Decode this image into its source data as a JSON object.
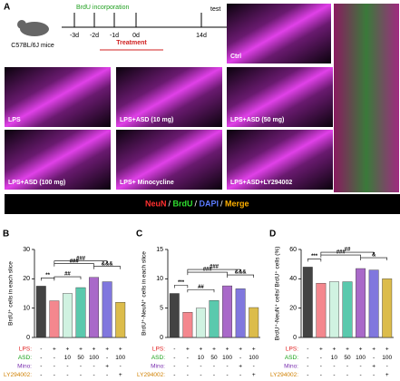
{
  "panel_a": {
    "label": "A",
    "mouse": "C57BL/6J mice",
    "brdu": "BrdU incorporation",
    "days": [
      "-3d",
      "-2d",
      "-1d",
      "0d",
      "14d"
    ],
    "test": "test",
    "treatment": "Treatment",
    "images": [
      "Ctrl",
      "LPS",
      "LPS+ASD (10 mg)",
      "LPS+ASD (50 mg)",
      "LPS+ASD (100 mg)",
      "LPS+ Minocycline",
      "LPS+ASD+LY294002"
    ],
    "stains": [
      {
        "name": "NeuN",
        "color": "#ff3030"
      },
      {
        "name": "BrdU",
        "color": "#30e030"
      },
      {
        "name": "DAPI",
        "color": "#5b7bff"
      },
      {
        "name": "Merge",
        "color": "#ffb000"
      }
    ]
  },
  "chart_data": [
    {
      "type": "bar",
      "label": "B",
      "ylabel": "BrdU⁺ cells in each slice",
      "values": [
        17.5,
        12.5,
        15,
        17,
        20.5,
        19,
        12
      ],
      "colors": [
        "#222222",
        "#f2727a",
        "#c8f0dc",
        "#3dbf9f",
        "#9a4fc0",
        "#6a5fd8",
        "#d6b02c"
      ],
      "ylim": [
        0,
        30
      ],
      "yticks": [
        0,
        10,
        20,
        30
      ],
      "annotations": [
        {
          "text": "**",
          "from": 0,
          "to": 1
        },
        {
          "text": "##",
          "from": 1,
          "to": 3
        },
        {
          "text": "###",
          "from": 1,
          "to": 4
        },
        {
          "text": "###",
          "from": 1,
          "to": 5
        },
        {
          "text": "&&&",
          "from": 4,
          "to": 6
        }
      ]
    },
    {
      "type": "bar",
      "label": "C",
      "ylabel": "BrdU⁺-NeuN⁺ cells in each slice",
      "values": [
        7.5,
        4.3,
        5.0,
        6.3,
        8.8,
        8.3,
        5.1
      ],
      "colors": [
        "#222222",
        "#f2727a",
        "#c8f0dc",
        "#3dbf9f",
        "#9a4fc0",
        "#6a5fd8",
        "#d6b02c"
      ],
      "ylim": [
        0,
        15
      ],
      "yticks": [
        0,
        5,
        10,
        15
      ],
      "annotations": [
        {
          "text": "***",
          "from": 0,
          "to": 1
        },
        {
          "text": "##",
          "from": 1,
          "to": 3
        },
        {
          "text": "###",
          "from": 1,
          "to": 4
        },
        {
          "text": "###",
          "from": 1,
          "to": 5
        },
        {
          "text": "&&&",
          "from": 4,
          "to": 6
        }
      ]
    },
    {
      "type": "bar",
      "label": "D",
      "ylabel": "BrdU⁺-NeuN⁺ cells/ BrdU⁺ cells (%)",
      "values": [
        48,
        37,
        38,
        38,
        47,
        46,
        40
      ],
      "colors": [
        "#222222",
        "#f2727a",
        "#c8f0dc",
        "#3dbf9f",
        "#9a4fc0",
        "#6a5fd8",
        "#d6b02c"
      ],
      "ylim": [
        0,
        60
      ],
      "yticks": [
        0,
        20,
        40,
        60
      ],
      "annotations": [
        {
          "text": "***",
          "from": 0,
          "to": 1
        },
        {
          "text": "###",
          "from": 1,
          "to": 4
        },
        {
          "text": "##",
          "from": 1,
          "to": 5
        },
        {
          "text": "&",
          "from": 4,
          "to": 6
        }
      ]
    }
  ],
  "conditions": [
    {
      "name": "LPS:",
      "color": "#e02020",
      "values": [
        "-",
        "+",
        "+",
        "+",
        "+",
        "+",
        "+"
      ]
    },
    {
      "name": "ASD:",
      "color": "#18a018",
      "values": [
        "-",
        "-",
        "10",
        "50",
        "100",
        "-",
        "100"
      ]
    },
    {
      "name": "Mino:",
      "color": "#7a30b0",
      "values": [
        "-",
        "-",
        "-",
        "-",
        "-",
        "+",
        "-"
      ]
    },
    {
      "name": "LY294002:",
      "color": "#d08000",
      "values": [
        "-",
        "-",
        "-",
        "-",
        "-",
        "-",
        "+"
      ]
    }
  ]
}
